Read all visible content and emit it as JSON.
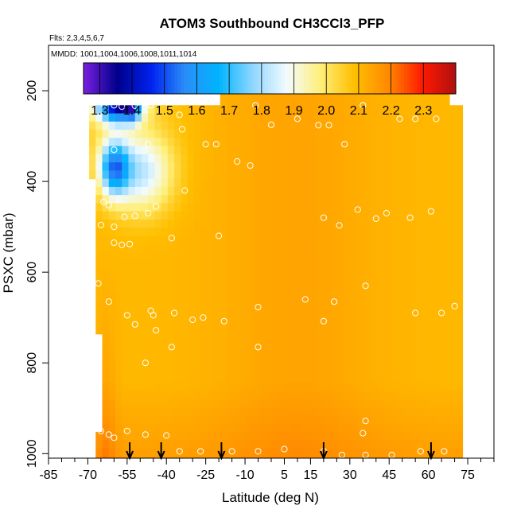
{
  "chart_data": {
    "type": "heatmap",
    "title": "ATOM3 Southbound CH3CCl3_PFP",
    "subtitle_flights": "Flts: 2,3,4,5,6,7",
    "subtitle_dates": "MMDD: 1001,1004,1006,1008,1011,1014",
    "xlabel": "Latitude (deg N)",
    "ylabel": "PSXC (mbar)",
    "xlim": [
      -85,
      85
    ],
    "ylim": [
      1010,
      100
    ],
    "x_ticks": [
      -85,
      -70,
      -55,
      -40,
      -25,
      -10,
      5,
      15,
      30,
      45,
      60,
      75
    ],
    "x_tick_labels": [
      "-85",
      "-70",
      "-55",
      "-40",
      "-25",
      "-10",
      "5",
      "15",
      "30",
      "45",
      "60",
      "75"
    ],
    "y_ticks": [
      200,
      400,
      600,
      800,
      1000
    ],
    "y_tick_labels": [
      "200",
      "400",
      "600",
      "800",
      "1000"
    ],
    "colorbar": {
      "min": 1.25,
      "max": 2.4,
      "ticks": [
        1.3,
        1.4,
        1.5,
        1.6,
        1.7,
        1.8,
        1.9,
        2.0,
        2.1,
        2.2,
        2.3
      ],
      "tick_labels": [
        "1.3",
        "1.4",
        "1.5",
        "1.6",
        "1.7",
        "1.8",
        "1.9",
        "2.0",
        "2.1",
        "2.2",
        "2.3"
      ],
      "colors": [
        "#7a1fe0",
        "#00008b",
        "#0022ee",
        "#2a8ef8",
        "#00b4ff",
        "#8fd6ff",
        "#f2fbff",
        "#ffef7a",
        "#ffbf00",
        "#ff8a00",
        "#ff1a00",
        "#b01010"
      ]
    },
    "domain": {
      "lat_start": -67,
      "lat_end": 72,
      "top_pressure_south": 225,
      "top_pressure_north": 170,
      "top_step_lat": -19
    },
    "arrow_latitudes": [
      -54,
      -42,
      -19,
      20,
      61
    ],
    "flight_points": [
      [
        -64,
        230
      ],
      [
        -60,
        232
      ],
      [
        -57,
        235
      ],
      [
        -52,
        233
      ],
      [
        -46,
        232
      ],
      [
        -35,
        253
      ],
      [
        -34,
        285
      ],
      [
        -25,
        318
      ],
      [
        -21,
        318
      ],
      [
        -13,
        356
      ],
      [
        -8,
        365
      ],
      [
        -6,
        232
      ],
      [
        0,
        275
      ],
      [
        10,
        262
      ],
      [
        18,
        276
      ],
      [
        22,
        276
      ],
      [
        28,
        318
      ],
      [
        35,
        232
      ],
      [
        39,
        198
      ],
      [
        49,
        262
      ],
      [
        55,
        262
      ],
      [
        63,
        262
      ],
      [
        70,
        198
      ],
      [
        -60,
        330
      ],
      [
        -47,
        318
      ],
      [
        -33,
        420
      ],
      [
        -62,
        452
      ],
      [
        -64,
        445
      ],
      [
        -65,
        496
      ],
      [
        -60,
        500
      ],
      [
        -56,
        478
      ],
      [
        -52,
        476
      ],
      [
        -47,
        470
      ],
      [
        -44,
        455
      ],
      [
        -38,
        525
      ],
      [
        -20,
        520
      ],
      [
        20,
        480
      ],
      [
        26,
        497
      ],
      [
        33,
        462
      ],
      [
        40,
        482
      ],
      [
        44,
        470
      ],
      [
        53,
        480
      ],
      [
        61,
        466
      ],
      [
        -60,
        535
      ],
      [
        -57,
        540
      ],
      [
        -54,
        538
      ],
      [
        -66,
        625
      ],
      [
        -62,
        665
      ],
      [
        -55,
        695
      ],
      [
        -52,
        715
      ],
      [
        -46,
        685
      ],
      [
        -45,
        695
      ],
      [
        -44,
        728
      ],
      [
        -37,
        690
      ],
      [
        -30,
        705
      ],
      [
        -26,
        700
      ],
      [
        -18,
        708
      ],
      [
        -5,
        677
      ],
      [
        13,
        660
      ],
      [
        20,
        708
      ],
      [
        24,
        665
      ],
      [
        36,
        630
      ],
      [
        55,
        690
      ],
      [
        65,
        690
      ],
      [
        70,
        675
      ],
      [
        -48,
        800
      ],
      [
        -38,
        765
      ],
      [
        -5,
        765
      ],
      [
        36,
        928
      ],
      [
        35,
        955
      ],
      [
        -65,
        950
      ],
      [
        -62,
        958
      ],
      [
        -60,
        965
      ],
      [
        -55,
        950
      ],
      [
        -48,
        958
      ],
      [
        -40,
        960
      ],
      [
        -35,
        995
      ],
      [
        -27,
        995
      ],
      [
        -15,
        995
      ],
      [
        -5,
        995
      ],
      [
        5,
        990
      ],
      [
        20,
        995
      ],
      [
        27,
        1003
      ],
      [
        36,
        1003
      ],
      [
        46,
        1003
      ],
      [
        57,
        995
      ],
      [
        66,
        995
      ]
    ]
  }
}
